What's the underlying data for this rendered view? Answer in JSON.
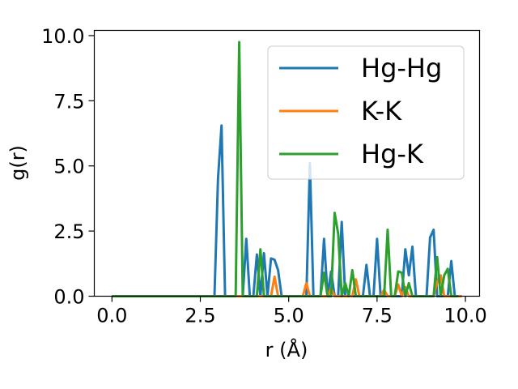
{
  "chart_data": {
    "type": "line",
    "xlabel": "r (Å)",
    "ylabel": "g(r)",
    "xlim": [
      -0.5,
      10.4
    ],
    "ylim": [
      0,
      10.2
    ],
    "xticks": [
      0.0,
      2.5,
      5.0,
      7.5,
      10.0
    ],
    "xtick_labels": [
      "0.0",
      "2.5",
      "5.0",
      "7.5",
      "10.0"
    ],
    "yticks": [
      0.0,
      2.5,
      5.0,
      7.5,
      10.0
    ],
    "ytick_labels": [
      "0.0",
      "2.5",
      "5.0",
      "7.5",
      "10.0"
    ],
    "grid": false,
    "legend_position": "top-right",
    "series": [
      {
        "name": "Hg-Hg",
        "color": "#1f77b4",
        "x": [
          0.0,
          2.9,
          3.0,
          3.1,
          3.2,
          3.3,
          3.4,
          3.5,
          3.6,
          3.7,
          3.8,
          3.9,
          4.0,
          4.1,
          4.2,
          4.3,
          4.4,
          4.5,
          4.6,
          4.7,
          4.8,
          4.9,
          5.0,
          5.1,
          5.2,
          5.3,
          5.4,
          5.5,
          5.6,
          5.7,
          5.8,
          5.9,
          6.0,
          6.1,
          6.2,
          6.3,
          6.4,
          6.5,
          6.6,
          6.7,
          6.8,
          6.9,
          7.0,
          7.1,
          7.2,
          7.3,
          7.4,
          7.5,
          7.6,
          7.7,
          7.8,
          7.9,
          8.0,
          8.1,
          8.2,
          8.3,
          8.4,
          8.5,
          8.6,
          8.7,
          8.8,
          8.9,
          9.0,
          9.1,
          9.2,
          9.3,
          9.4,
          9.5,
          9.6,
          9.7,
          9.8,
          9.9
        ],
        "y": [
          0.0,
          0.0,
          4.5,
          6.55,
          0.0,
          0.0,
          0.0,
          0.0,
          0.0,
          0.0,
          2.2,
          0.0,
          0.0,
          1.6,
          0.0,
          1.65,
          0.0,
          1.45,
          1.4,
          1.0,
          0.0,
          0.0,
          0.0,
          0.0,
          0.0,
          0.0,
          0.0,
          0.0,
          5.1,
          0.0,
          0.0,
          0.0,
          2.2,
          0.0,
          0.95,
          0.0,
          0.0,
          2.85,
          0.0,
          0.0,
          0.0,
          0.0,
          0.0,
          0.0,
          1.2,
          0.0,
          0.0,
          2.2,
          0.0,
          0.0,
          0.0,
          0.0,
          0.0,
          0.0,
          0.0,
          1.8,
          0.8,
          1.9,
          0.0,
          0.0,
          0.0,
          0.0,
          2.25,
          2.55,
          0.0,
          0.0,
          0.0,
          0.0,
          1.35,
          0.0,
          0.0,
          0.0
        ]
      },
      {
        "name": "K-K",
        "color": "#ff7f0e",
        "x": [
          0.0,
          4.5,
          4.6,
          4.7,
          5.0,
          5.4,
          5.5,
          5.6,
          6.1,
          6.2,
          6.3,
          6.4,
          6.5,
          6.8,
          6.9,
          7.0,
          7.1,
          7.2,
          7.6,
          7.7,
          7.8,
          8.0,
          8.1,
          8.2,
          8.3,
          8.4,
          8.5,
          9.0,
          9.1,
          9.2,
          9.3,
          9.4,
          9.5,
          9.6,
          9.7,
          9.9
        ],
        "y": [
          0.0,
          0.0,
          0.75,
          0.0,
          0.0,
          0.0,
          0.5,
          0.0,
          0.0,
          0.3,
          0.0,
          0.0,
          0.0,
          0.0,
          0.65,
          0.0,
          0.0,
          0.0,
          0.0,
          0.25,
          0.0,
          0.0,
          0.45,
          0.0,
          0.35,
          0.0,
          0.0,
          0.0,
          0.0,
          0.55,
          0.8,
          0.0,
          0.0,
          0.0,
          0.0,
          0.0
        ]
      },
      {
        "name": "Hg-K",
        "color": "#2ca02c",
        "x": [
          0.0,
          3.4,
          3.5,
          3.6,
          3.7,
          3.8,
          3.9,
          4.0,
          4.1,
          4.2,
          4.3,
          4.4,
          4.5,
          4.6,
          4.7,
          4.8,
          4.9,
          5.0,
          5.1,
          5.2,
          5.3,
          5.4,
          5.5,
          5.6,
          5.7,
          5.8,
          5.9,
          6.0,
          6.1,
          6.2,
          6.3,
          6.4,
          6.5,
          6.6,
          6.7,
          6.8,
          6.9,
          7.0,
          7.1,
          7.2,
          7.3,
          7.4,
          7.5,
          7.6,
          7.7,
          7.8,
          7.9,
          8.0,
          8.1,
          8.2,
          8.3,
          8.4,
          8.5,
          8.6,
          8.7,
          8.8,
          8.9,
          9.0,
          9.1,
          9.2,
          9.3,
          9.4,
          9.5,
          9.6,
          9.7,
          9.8
        ],
        "y": [
          0.0,
          0.0,
          0.0,
          9.75,
          0.0,
          0.0,
          0.0,
          0.0,
          0.0,
          1.8,
          0.0,
          0.0,
          0.0,
          0.0,
          0.0,
          0.0,
          0.0,
          0.0,
          0.0,
          0.0,
          0.0,
          0.0,
          0.0,
          0.0,
          0.0,
          0.0,
          0.0,
          0.9,
          0.0,
          0.0,
          3.2,
          2.4,
          0.0,
          0.5,
          0.0,
          1.0,
          0.0,
          0.0,
          0.0,
          0.0,
          0.0,
          0.0,
          0.0,
          0.0,
          0.0,
          2.55,
          0.0,
          0.0,
          0.95,
          0.9,
          0.0,
          0.5,
          0.0,
          0.0,
          0.0,
          0.0,
          0.0,
          0.0,
          0.0,
          1.5,
          0.0,
          0.8,
          1.05,
          0.0,
          0.0,
          0.0
        ]
      }
    ]
  }
}
